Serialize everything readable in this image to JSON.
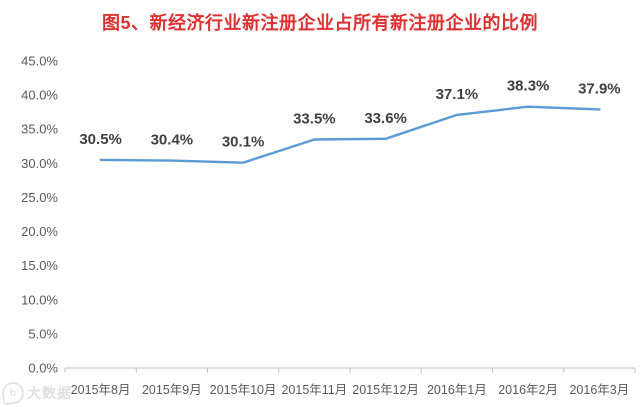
{
  "chart_data": {
    "type": "line",
    "title": "图5、新经济行业新注册企业占所有新注册企业的比例",
    "categories": [
      "2015年8月",
      "2015年9月",
      "2015年10月",
      "2015年11月",
      "2015年12月",
      "2016年1月",
      "2016年2月",
      "2016年3月"
    ],
    "values": [
      30.5,
      30.4,
      30.1,
      33.5,
      33.6,
      37.1,
      38.3,
      37.9
    ],
    "data_labels": [
      "30.5%",
      "30.4%",
      "30.1%",
      "33.5%",
      "33.6%",
      "37.1%",
      "38.3%",
      "37.9%"
    ],
    "y_tick_values": [
      45,
      40,
      35,
      30,
      25,
      20,
      15,
      10,
      5,
      0
    ],
    "y_tick_labels": [
      "45.0%",
      "40.0%",
      "35.0%",
      "30.0%",
      "25.0%",
      "20.0%",
      "15.0%",
      "10.0%",
      "5.0%",
      "0.0%"
    ],
    "ylim": [
      0,
      45
    ],
    "xlabel": "",
    "ylabel": "",
    "grid": false,
    "legend": false
  },
  "colors": {
    "title": "#e03131",
    "line": "#5b9bd5",
    "data_label": "#404040",
    "axis": "#bfbfbf",
    "tick_text": "#595959"
  },
  "watermark": {
    "logo": "b",
    "text": "大数据"
  }
}
